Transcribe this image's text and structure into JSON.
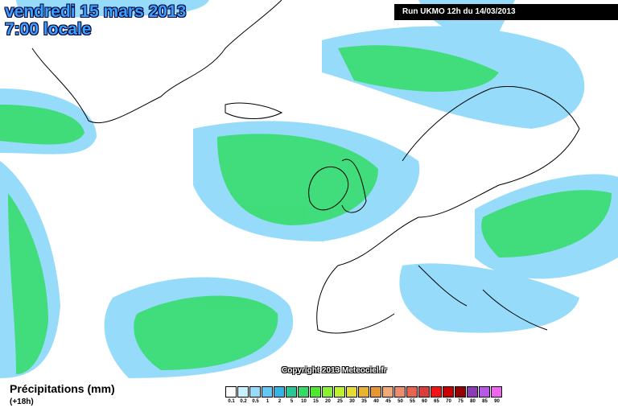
{
  "header": {
    "title": "vendredi 15 mars 2013",
    "subtitle": "7:00 locale",
    "run": "Run UKMO 12h du 14/03/2013"
  },
  "copyright": "Copyright 2013 Meteociel.fr",
  "legend": {
    "title": "Précipitations (mm)",
    "lead_time": "(+18h)",
    "items": [
      {
        "label": "0.1",
        "color": "#ffffff"
      },
      {
        "label": "0.2",
        "color": "#c8f0ff"
      },
      {
        "label": "0.5",
        "color": "#96dcfa"
      },
      {
        "label": "1",
        "color": "#64c8f5"
      },
      {
        "label": "2",
        "color": "#32b4e6"
      },
      {
        "label": "5",
        "color": "#28c896"
      },
      {
        "label": "10",
        "color": "#32dc64"
      },
      {
        "label": "15",
        "color": "#50e632"
      },
      {
        "label": "20",
        "color": "#8cf032"
      },
      {
        "label": "25",
        "color": "#bef032"
      },
      {
        "label": "30",
        "color": "#e6dc32"
      },
      {
        "label": "35",
        "color": "#e6b432"
      },
      {
        "label": "40",
        "color": "#e69632"
      },
      {
        "label": "45",
        "color": "#f0aa78"
      },
      {
        "label": "50",
        "color": "#f08c6e"
      },
      {
        "label": "55",
        "color": "#e66450"
      },
      {
        "label": "60",
        "color": "#dc3c3c"
      },
      {
        "label": "65",
        "color": "#f01414"
      },
      {
        "label": "70",
        "color": "#c80000"
      },
      {
        "label": "75",
        "color": "#960000"
      },
      {
        "label": "80",
        "color": "#8c3cb4"
      },
      {
        "label": "85",
        "color": "#b45ae6"
      },
      {
        "label": "90",
        "color": "#f064f0"
      }
    ]
  }
}
